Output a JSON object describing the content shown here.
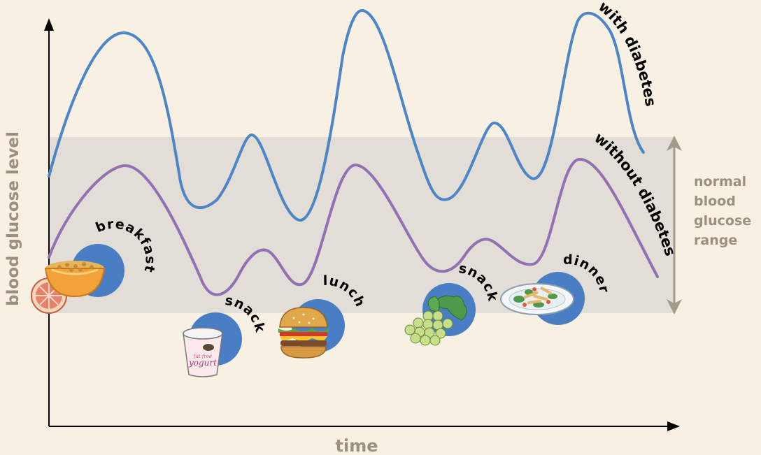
{
  "axes": {
    "x_label": "time",
    "y_label": "blood glucose level"
  },
  "range_label": [
    "normal",
    "blood",
    "glucose",
    "range"
  ],
  "curves": {
    "with": {
      "label": "with diabetes",
      "color": "#4d86c6"
    },
    "without": {
      "label": "without diabetes",
      "color": "#9370b3"
    }
  },
  "meals": [
    "breakfast",
    "snack",
    "lunch",
    "snack",
    "dinner"
  ],
  "food_icons": [
    "grapefruit-icon",
    "cereal-bowl-icon",
    "yogurt-cup-icon",
    "hamburger-icon",
    "grapes-icon",
    "salad-plate-icon"
  ],
  "yogurt_text": {
    "top": "fat free",
    "main": "yogurt"
  },
  "colors": {
    "background": "#f8f0e3",
    "range_band": "#e2ddd6",
    "meal_circle": "#4a7ec4",
    "axis": "#000000",
    "range_text": "#9a8f80"
  }
}
